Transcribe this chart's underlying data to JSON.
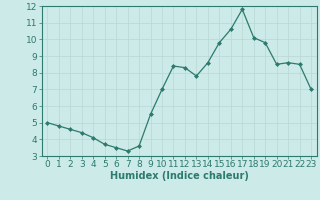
{
  "x": [
    0,
    1,
    2,
    3,
    4,
    5,
    6,
    7,
    8,
    9,
    10,
    11,
    12,
    13,
    14,
    15,
    16,
    17,
    18,
    19,
    20,
    21,
    22,
    23
  ],
  "y": [
    5.0,
    4.8,
    4.6,
    4.4,
    4.1,
    3.7,
    3.5,
    3.3,
    3.6,
    5.5,
    7.0,
    8.4,
    8.3,
    7.8,
    8.6,
    9.8,
    10.6,
    11.8,
    10.1,
    9.8,
    8.5,
    8.6,
    8.5,
    7.0
  ],
  "xlabel": "Humidex (Indice chaleur)",
  "ylim": [
    3,
    12
  ],
  "xlim": [
    -0.5,
    23.5
  ],
  "yticks": [
    3,
    4,
    5,
    6,
    7,
    8,
    9,
    10,
    11,
    12
  ],
  "xticks": [
    0,
    1,
    2,
    3,
    4,
    5,
    6,
    7,
    8,
    9,
    10,
    11,
    12,
    13,
    14,
    15,
    16,
    17,
    18,
    19,
    20,
    21,
    22,
    23
  ],
  "line_color": "#2d7a6e",
  "marker": "D",
  "marker_size": 2.0,
  "bg_color": "#cceae7",
  "grid_color": "#b8d8d5",
  "axis_color": "#2d7a6e",
  "tick_color": "#2d7a6e",
  "label_color": "#2d7a6e",
  "xlabel_fontsize": 7,
  "tick_fontsize": 6.5
}
